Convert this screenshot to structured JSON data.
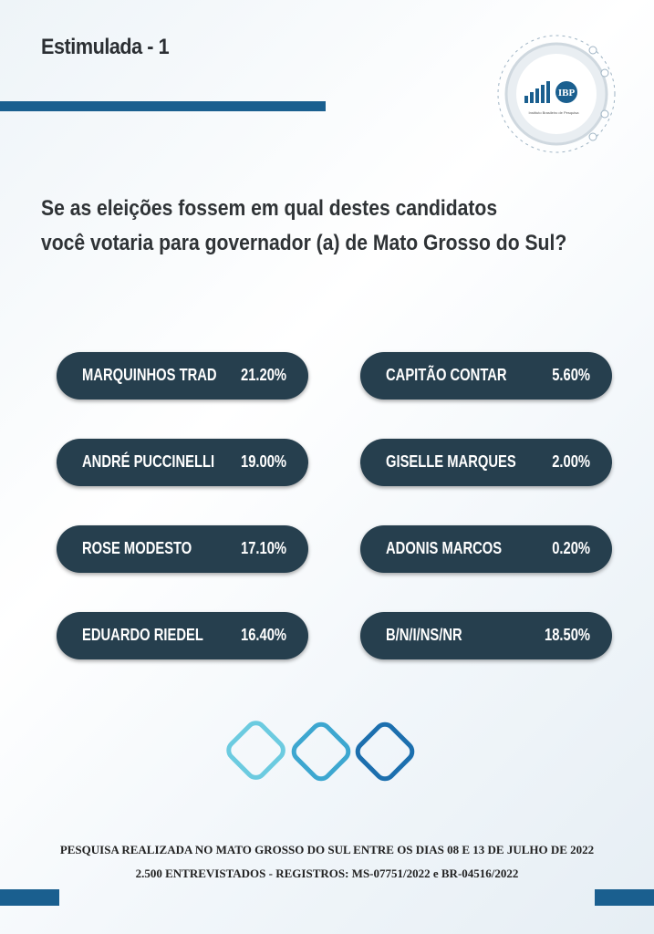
{
  "header": {
    "title": "Estimulada - 1",
    "logo": {
      "mark": "IBP",
      "caption": "Instituto Brasileiro de Pesquisa"
    }
  },
  "question": {
    "lines": [
      "Se as eleições fossem em qual destes candidatos",
      "você votaria para governador (a) de Mato Grosso do Sul?"
    ]
  },
  "results": {
    "left": [
      {
        "name": "MARQUINHOS TRAD",
        "value": "21.20%"
      },
      {
        "name": "ANDRÉ PUCCINELLI",
        "value": "19.00%"
      },
      {
        "name": "ROSE MODESTO",
        "value": "17.10%"
      },
      {
        "name": "EDUARDO RIEDEL",
        "value": "16.40%"
      }
    ],
    "right": [
      {
        "name": "CAPITÃO CONTAR",
        "value": "5.60%"
      },
      {
        "name": "GISELLE MARQUES",
        "value": "2.00%"
      },
      {
        "name": "ADONIS MARCOS",
        "value": "0.20%"
      },
      {
        "name": "B/N/I/NS/NR",
        "value": "18.50%"
      }
    ]
  },
  "footer": {
    "lines": [
      "PESQUISA REALIZADA NO MATO GROSSO DO SUL ENTRE OS DIAS 08 E 13 DE JULHO DE 2022",
      "2.500 ENTREVISTADOS - REGISTROS: MS-07751/2022 e BR-04516/2022"
    ]
  }
}
